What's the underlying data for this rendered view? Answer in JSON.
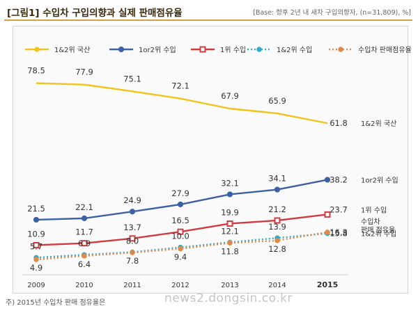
{
  "header": {
    "title": "[그림1] 수입차 구입의향과 실제 판매점유율",
    "base_note": "[Base: 향후 2년 내 새차 구입의향자, (n=31,809), %]"
  },
  "footer": {
    "note": "주) 2015년 수입차 판매 점유율은",
    "watermark": "news2.dongsin.co.kr"
  },
  "colors": {
    "domestic": "#f2c318",
    "import_1or2": "#3e61a4",
    "import_1st": "#d13a3e",
    "import_1and2": "#3aa8c8",
    "market_share": "#e08a4a"
  },
  "chart_data": {
    "type": "line",
    "title": "수입차 구입의향과 실제 판매점유율",
    "x": [
      "2009",
      "2010",
      "2011",
      "2012",
      "2013",
      "2014",
      "2015"
    ],
    "ylim": [
      0,
      90
    ],
    "grid": false,
    "legend_position": "top",
    "series": [
      {
        "name": "1&2위 국산",
        "end_label": "1&2위 국산",
        "color": "#f2c318",
        "style": "solid",
        "marker": "none",
        "values": [
          78.5,
          77.9,
          75.1,
          72.1,
          67.9,
          65.9,
          61.8
        ]
      },
      {
        "name": "1or2위 수입",
        "end_label": "1or2위 수입",
        "color": "#3e61a4",
        "style": "solid",
        "marker": "circle",
        "values": [
          21.5,
          22.1,
          24.9,
          27.9,
          32.1,
          34.1,
          38.2
        ]
      },
      {
        "name": "1위 수입",
        "end_label": "1위 수입",
        "color": "#d13a3e",
        "style": "solid",
        "marker": "square",
        "values": [
          10.9,
          11.7,
          13.7,
          16.5,
          19.9,
          21.2,
          23.7
        ]
      },
      {
        "name": "1&2위 수입",
        "end_label": "1&2위 수입",
        "color": "#3aa8c8",
        "style": "dotted",
        "marker": "circle",
        "values": [
          5.7,
          6.9,
          8.0,
          10.0,
          12.1,
          13.9,
          15.8
        ]
      },
      {
        "name": "수입차 판매점유율",
        "end_label": "수입차 판매 점유율",
        "color": "#e08a4a",
        "style": "dotted",
        "marker": "circle",
        "values": [
          4.9,
          6.4,
          7.8,
          9.4,
          11.8,
          12.8,
          16.3
        ]
      }
    ]
  }
}
